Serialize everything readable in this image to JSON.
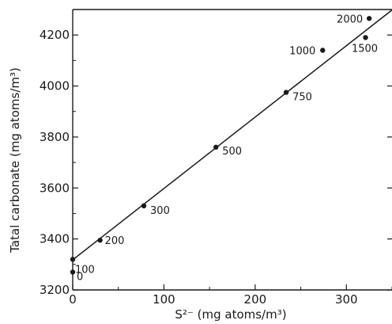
{
  "chart_data": {
    "type": "scatter",
    "title": "",
    "xlabel": "S²⁻ (mg atoms/m³)",
    "ylabel": "Tatal carbonate (mg atoms/m³)",
    "xlim": [
      0,
      350
    ],
    "ylim": [
      3200,
      4300
    ],
    "x_ticks": [
      0,
      100,
      200,
      300
    ],
    "y_ticks": [
      3200,
      3400,
      3600,
      3800,
      4000,
      4200
    ],
    "x_tick_labels": [
      "0",
      "100",
      "200",
      "300"
    ],
    "y_tick_labels": [
      "3200",
      "3400",
      "3600",
      "3800",
      "4000",
      "4200"
    ],
    "grid": false,
    "legend": "none",
    "points": [
      {
        "label": "0",
        "x": 0,
        "y": 3270
      },
      {
        "label": "100",
        "x": 0,
        "y": 3320
      },
      {
        "label": "200",
        "x": 30,
        "y": 3395
      },
      {
        "label": "300",
        "x": 78,
        "y": 3530
      },
      {
        "label": "500",
        "x": 157,
        "y": 3760
      },
      {
        "label": "750",
        "x": 234,
        "y": 3975
      },
      {
        "label": "1000",
        "x": 274,
        "y": 4140
      },
      {
        "label": "1500",
        "x": 321,
        "y": 4190
      },
      {
        "label": "2000",
        "x": 325,
        "y": 4265
      }
    ],
    "fit_line": {
      "x": [
        0,
        350
      ],
      "y": [
        3318,
        4298
      ]
    },
    "colors": {
      "ink": "#1a1a1a",
      "background": "#ffffff"
    }
  }
}
